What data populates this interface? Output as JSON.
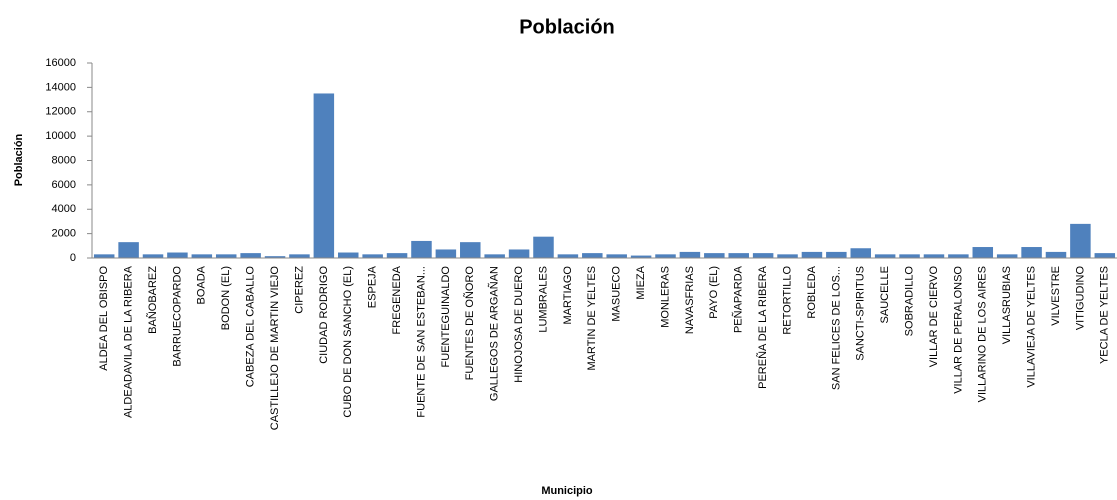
{
  "chart_data": {
    "type": "bar",
    "title": "Población",
    "x_label": "Municipio",
    "y_label": "Población",
    "categories": [
      "ALDEA DEL OBISPO",
      "ALDEADAVILA DE LA RIBERA",
      "BAÑOBAREZ",
      "BARRUECOPARDO",
      "BOADA",
      "BODON (EL)",
      "CABEZA DEL CABALLO",
      "CASTILLEJO DE MARTIN VIEJO",
      "CIPEREZ",
      "CIUDAD RODRIGO",
      "CUBO DE DON SANCHO (EL)",
      "ESPEJA",
      "FREGENEDA",
      "FUENTE DE SAN ESTEBAN...",
      "FUENTEGUINALDO",
      "FUENTES DE OÑORO",
      "GALLEGOS DE ARGAÑAN",
      "HINOJOSA DE DUERO",
      "LUMBRALES",
      "MARTIAGO",
      "MARTIN DE YELTES",
      "MASUECO",
      "MIEZA",
      "MONLERAS",
      "NAVASFRIAS",
      "PAYO (EL)",
      "PEÑAPARDA",
      "PEREÑA DE LA RIBERA",
      "RETORTILLO",
      "ROBLEDA",
      "SAN FELICES DE LOS...",
      "SANCTI-SPIRITUS",
      "SAUCELLE",
      "SOBRADILLO",
      "VILLAR DE CIERVO",
      "VILLAR DE PERALONSO",
      "VILLARINO DE LOS AIRES",
      "VILLASRUBIAS",
      "VILLAVIEJA DE YELTES",
      "VILVESTRE",
      "VITIGUDINO",
      "YECLA DE YELTES"
    ],
    "values": [
      300,
      1300,
      300,
      450,
      300,
      300,
      400,
      150,
      300,
      13500,
      450,
      300,
      400,
      1400,
      700,
      1300,
      300,
      700,
      1750,
      300,
      400,
      300,
      200,
      300,
      500,
      400,
      400,
      400,
      300,
      500,
      500,
      800,
      300,
      300,
      300,
      300,
      900,
      300,
      900,
      500,
      2800,
      400
    ],
    "color": "#4f81bd",
    "ylim": [
      0,
      16000
    ],
    "yticks": [
      0,
      2000,
      4000,
      6000,
      8000,
      10000,
      12000,
      14000,
      16000
    ],
    "grid": false
  }
}
